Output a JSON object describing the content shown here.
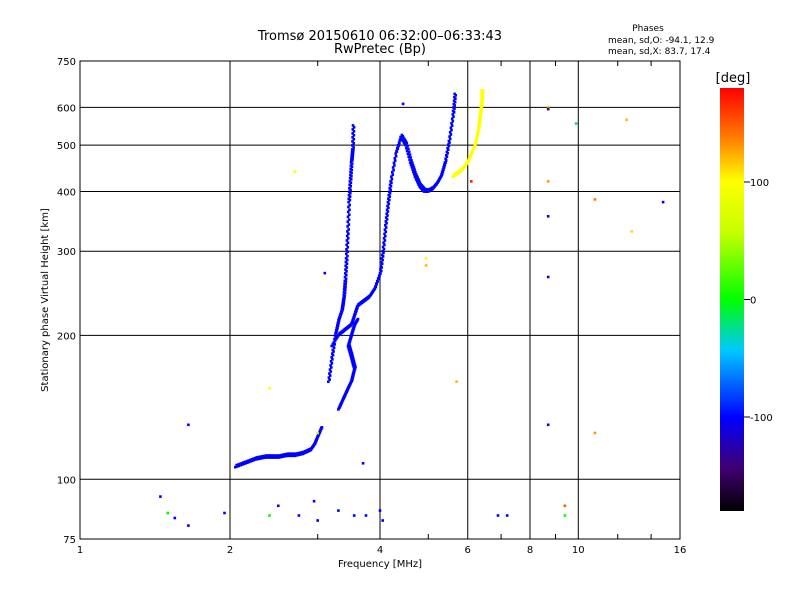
{
  "header": {
    "title_line1": "Tromsø 20150610 06:32:00–06:33:43",
    "title_line2": "RwPretec (Bp)"
  },
  "phase_box": {
    "heading": "Phases",
    "line_o": "mean, sd,O:  -94.1, 12.9",
    "line_x": "mean, sd,X:  83.7, 17.4"
  },
  "colorbar": {
    "label": "[deg]",
    "range": [
      -180,
      180
    ],
    "ticks": [
      "100",
      "0",
      "-100"
    ],
    "tick_values": [
      100,
      0,
      -100
    ]
  },
  "chart_data": {
    "type": "scatter",
    "xlabel": "Frequency [MHz]",
    "ylabel": "Stationary phase Virtual Height [km]",
    "xscale": "log",
    "yscale": "log",
    "xlim": [
      1,
      16
    ],
    "ylim": [
      75,
      750
    ],
    "xticks": [
      1,
      2,
      4,
      6,
      8,
      10,
      16
    ],
    "xtick_labels": [
      "1",
      "2",
      "4",
      "6",
      "8",
      "10",
      "16"
    ],
    "yticks": [
      75,
      100,
      200,
      300,
      400,
      500,
      600,
      750
    ],
    "ytick_labels": [
      "75",
      "100",
      "200",
      "300",
      "400",
      "500",
      "600",
      "750"
    ],
    "grid": true,
    "color_by": "phase_deg",
    "trace_segments": [
      {
        "phase": -100,
        "points": [
          [
            2.05,
            106
          ],
          [
            2.15,
            108
          ],
          [
            2.25,
            110
          ],
          [
            2.35,
            111
          ],
          [
            2.5,
            111
          ],
          [
            2.6,
            112
          ],
          [
            2.7,
            112
          ],
          [
            2.8,
            113
          ],
          [
            2.9,
            115
          ],
          [
            2.95,
            118
          ],
          [
            3.0,
            123
          ],
          [
            3.05,
            128
          ]
        ]
      },
      {
        "phase": -100,
        "points": [
          [
            3.15,
            160
          ],
          [
            3.2,
            180
          ],
          [
            3.25,
            200
          ],
          [
            3.3,
            215
          ],
          [
            3.35,
            225
          ],
          [
            3.38,
            240
          ],
          [
            3.4,
            260
          ],
          [
            3.42,
            290
          ],
          [
            3.44,
            330
          ],
          [
            3.46,
            380
          ],
          [
            3.48,
            420
          ],
          [
            3.5,
            460
          ],
          [
            3.52,
            490
          ],
          [
            3.53,
            550
          ]
        ]
      },
      {
        "phase": -100,
        "points": [
          [
            3.2,
            190
          ],
          [
            3.3,
            200
          ],
          [
            3.4,
            205
          ],
          [
            3.5,
            210
          ],
          [
            3.55,
            220
          ],
          [
            3.6,
            230
          ],
          [
            3.7,
            235
          ],
          [
            3.8,
            240
          ],
          [
            3.9,
            250
          ],
          [
            4.0,
            270
          ],
          [
            4.05,
            300
          ],
          [
            4.1,
            340
          ],
          [
            4.15,
            380
          ],
          [
            4.2,
            420
          ],
          [
            4.3,
            480
          ],
          [
            4.4,
            520
          ],
          [
            4.5,
            500
          ],
          [
            4.6,
            460
          ],
          [
            4.7,
            430
          ],
          [
            4.8,
            410
          ],
          [
            4.9,
            400
          ],
          [
            5.0,
            400
          ],
          [
            5.1,
            405
          ],
          [
            5.2,
            415
          ],
          [
            5.3,
            430
          ],
          [
            5.4,
            460
          ],
          [
            5.5,
            510
          ],
          [
            5.6,
            580
          ],
          [
            5.65,
            640
          ]
        ]
      },
      {
        "phase": -100,
        "points": [
          [
            3.3,
            140
          ],
          [
            3.35,
            145
          ],
          [
            3.4,
            150
          ],
          [
            3.45,
            155
          ],
          [
            3.5,
            160
          ],
          [
            3.55,
            170
          ],
          [
            3.5,
            180
          ],
          [
            3.45,
            190
          ],
          [
            3.5,
            200
          ],
          [
            3.55,
            210
          ],
          [
            3.6,
            215
          ]
        ]
      },
      {
        "phase": 100,
        "points": [
          [
            5.6,
            430
          ],
          [
            5.7,
            435
          ],
          [
            5.8,
            440
          ],
          [
            5.9,
            450
          ],
          [
            6.0,
            460
          ],
          [
            6.1,
            480
          ],
          [
            6.2,
            500
          ],
          [
            6.3,
            540
          ],
          [
            6.35,
            580
          ],
          [
            6.4,
            620
          ],
          [
            6.4,
            650
          ]
        ]
      }
    ],
    "scattered_points": [
      {
        "x": 1.45,
        "y": 92,
        "phase": -100
      },
      {
        "x": 1.5,
        "y": 85,
        "phase": 0
      },
      {
        "x": 1.55,
        "y": 83,
        "phase": -100
      },
      {
        "x": 1.65,
        "y": 80,
        "phase": -100
      },
      {
        "x": 1.65,
        "y": 130,
        "phase": -100
      },
      {
        "x": 1.95,
        "y": 85,
        "phase": -100
      },
      {
        "x": 2.4,
        "y": 84,
        "phase": 0
      },
      {
        "x": 2.5,
        "y": 88,
        "phase": -100
      },
      {
        "x": 2.4,
        "y": 155,
        "phase": 100
      },
      {
        "x": 2.7,
        "y": 440,
        "phase": 100
      },
      {
        "x": 2.75,
        "y": 84,
        "phase": -100
      },
      {
        "x": 2.95,
        "y": 90,
        "phase": -100
      },
      {
        "x": 3.0,
        "y": 82,
        "phase": -100
      },
      {
        "x": 3.0,
        "y": 125,
        "phase": 50
      },
      {
        "x": 3.1,
        "y": 270,
        "phase": -100
      },
      {
        "x": 3.3,
        "y": 86,
        "phase": -100
      },
      {
        "x": 3.55,
        "y": 84,
        "phase": -100
      },
      {
        "x": 3.75,
        "y": 84,
        "phase": -100
      },
      {
        "x": 3.7,
        "y": 108,
        "phase": -100
      },
      {
        "x": 4.0,
        "y": 86,
        "phase": -100
      },
      {
        "x": 4.05,
        "y": 82,
        "phase": -100
      },
      {
        "x": 4.45,
        "y": 610,
        "phase": -100
      },
      {
        "x": 4.95,
        "y": 280,
        "phase": 120
      },
      {
        "x": 4.95,
        "y": 290,
        "phase": 100
      },
      {
        "x": 5.7,
        "y": 160,
        "phase": 120
      },
      {
        "x": 6.1,
        "y": 420,
        "phase": 170
      },
      {
        "x": 6.9,
        "y": 84,
        "phase": -100
      },
      {
        "x": 7.2,
        "y": 84,
        "phase": -100
      },
      {
        "x": 8.7,
        "y": 600,
        "phase": 120
      },
      {
        "x": 8.7,
        "y": 595,
        "phase": -150
      },
      {
        "x": 8.7,
        "y": 420,
        "phase": 130
      },
      {
        "x": 8.7,
        "y": 355,
        "phase": -120
      },
      {
        "x": 8.7,
        "y": 265,
        "phase": -120
      },
      {
        "x": 8.7,
        "y": 130,
        "phase": -120
      },
      {
        "x": 9.4,
        "y": 88,
        "phase": 150
      },
      {
        "x": 9.4,
        "y": 84,
        "phase": 0
      },
      {
        "x": 9.9,
        "y": 555,
        "phase": -20
      },
      {
        "x": 10.8,
        "y": 385,
        "phase": 140
      },
      {
        "x": 10.8,
        "y": 125,
        "phase": 130
      },
      {
        "x": 12.5,
        "y": 565,
        "phase": 120
      },
      {
        "x": 12.8,
        "y": 330,
        "phase": 110
      },
      {
        "x": 14.8,
        "y": 380,
        "phase": -100
      }
    ]
  }
}
